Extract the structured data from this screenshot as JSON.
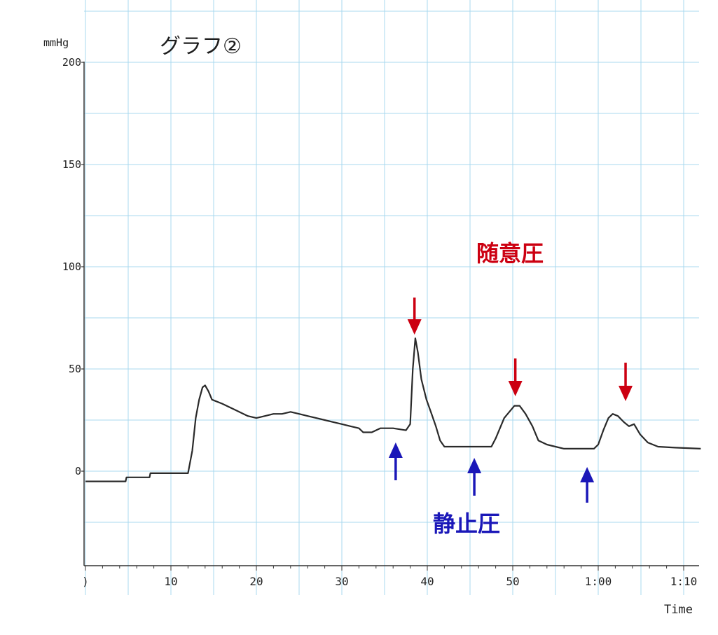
{
  "chart_data": {
    "type": "line",
    "title": "グラフ②",
    "ylabel": "mmHg",
    "xlabel": "Time",
    "ylim": [
      -45,
      200
    ],
    "xlim": [
      0,
      72
    ],
    "y_ticks": [
      0,
      50,
      100,
      150,
      200
    ],
    "y_tick_labels": [
      "0",
      "50",
      "100",
      "150",
      "200"
    ],
    "x_ticks": [
      0,
      10,
      20,
      30,
      40,
      50,
      60,
      70
    ],
    "x_tick_labels": [
      ")",
      "10",
      "20",
      "30",
      "40",
      "50",
      "1:00",
      "1:10"
    ],
    "grid": true,
    "series": [
      {
        "color": "#2a2a2a",
        "points": [
          [
            0,
            -5
          ],
          [
            4.7,
            -5
          ],
          [
            4.8,
            -3
          ],
          [
            7.5,
            -3
          ],
          [
            7.6,
            -1
          ],
          [
            12.0,
            -1
          ],
          [
            12.5,
            10
          ],
          [
            12.9,
            26
          ],
          [
            13.3,
            35
          ],
          [
            13.7,
            41
          ],
          [
            14.0,
            42
          ],
          [
            14.4,
            39
          ],
          [
            14.8,
            35
          ],
          [
            16.0,
            33
          ],
          [
            17.5,
            30
          ],
          [
            19.0,
            27
          ],
          [
            20.0,
            26
          ],
          [
            21.0,
            27
          ],
          [
            22.0,
            28
          ],
          [
            23.0,
            28
          ],
          [
            24.0,
            29
          ],
          [
            25.0,
            28
          ],
          [
            26.0,
            27
          ],
          [
            27.0,
            26
          ],
          [
            28.0,
            25
          ],
          [
            29.0,
            24
          ],
          [
            30.0,
            23
          ],
          [
            31.0,
            22
          ],
          [
            32.0,
            21
          ],
          [
            32.5,
            19
          ],
          [
            33.5,
            19
          ],
          [
            34.5,
            21
          ],
          [
            36.0,
            21
          ],
          [
            37.5,
            20
          ],
          [
            38.0,
            23
          ],
          [
            38.3,
            50
          ],
          [
            38.6,
            65
          ],
          [
            38.9,
            58
          ],
          [
            39.3,
            45
          ],
          [
            39.9,
            35
          ],
          [
            40.5,
            28
          ],
          [
            41.0,
            22
          ],
          [
            41.5,
            15
          ],
          [
            42.0,
            12
          ],
          [
            44.0,
            12
          ],
          [
            46.0,
            12
          ],
          [
            47.5,
            12
          ],
          [
            48.0,
            16
          ],
          [
            49.0,
            26
          ],
          [
            50.2,
            32
          ],
          [
            50.8,
            32
          ],
          [
            51.5,
            28
          ],
          [
            52.3,
            22
          ],
          [
            53.0,
            15
          ],
          [
            54.0,
            13
          ],
          [
            55.0,
            12
          ],
          [
            56.0,
            11
          ],
          [
            57.0,
            11
          ],
          [
            58.0,
            11
          ],
          [
            59.5,
            11
          ],
          [
            60.0,
            13
          ],
          [
            60.6,
            20
          ],
          [
            61.2,
            26
          ],
          [
            61.7,
            28
          ],
          [
            62.3,
            27
          ],
          [
            63.0,
            24
          ],
          [
            63.6,
            22
          ],
          [
            64.2,
            23
          ],
          [
            64.9,
            18
          ],
          [
            65.8,
            14
          ],
          [
            67.0,
            12
          ],
          [
            69.0,
            11.5
          ],
          [
            72.0,
            11
          ]
        ]
      }
    ],
    "annotations": {
      "voluntary_label": "随意圧",
      "voluntary_color": "#cc0011",
      "resting_label": "静止圧",
      "resting_color": "#1a17b8",
      "voluntary_arrows_x": [
        38.5,
        50.3,
        63.2
      ],
      "resting_arrows_x": [
        36.3,
        45.5,
        58.7
      ]
    },
    "colors": {
      "grid": "#a9d8ef",
      "axis": "#333333",
      "line": "#2a2a2a"
    }
  }
}
